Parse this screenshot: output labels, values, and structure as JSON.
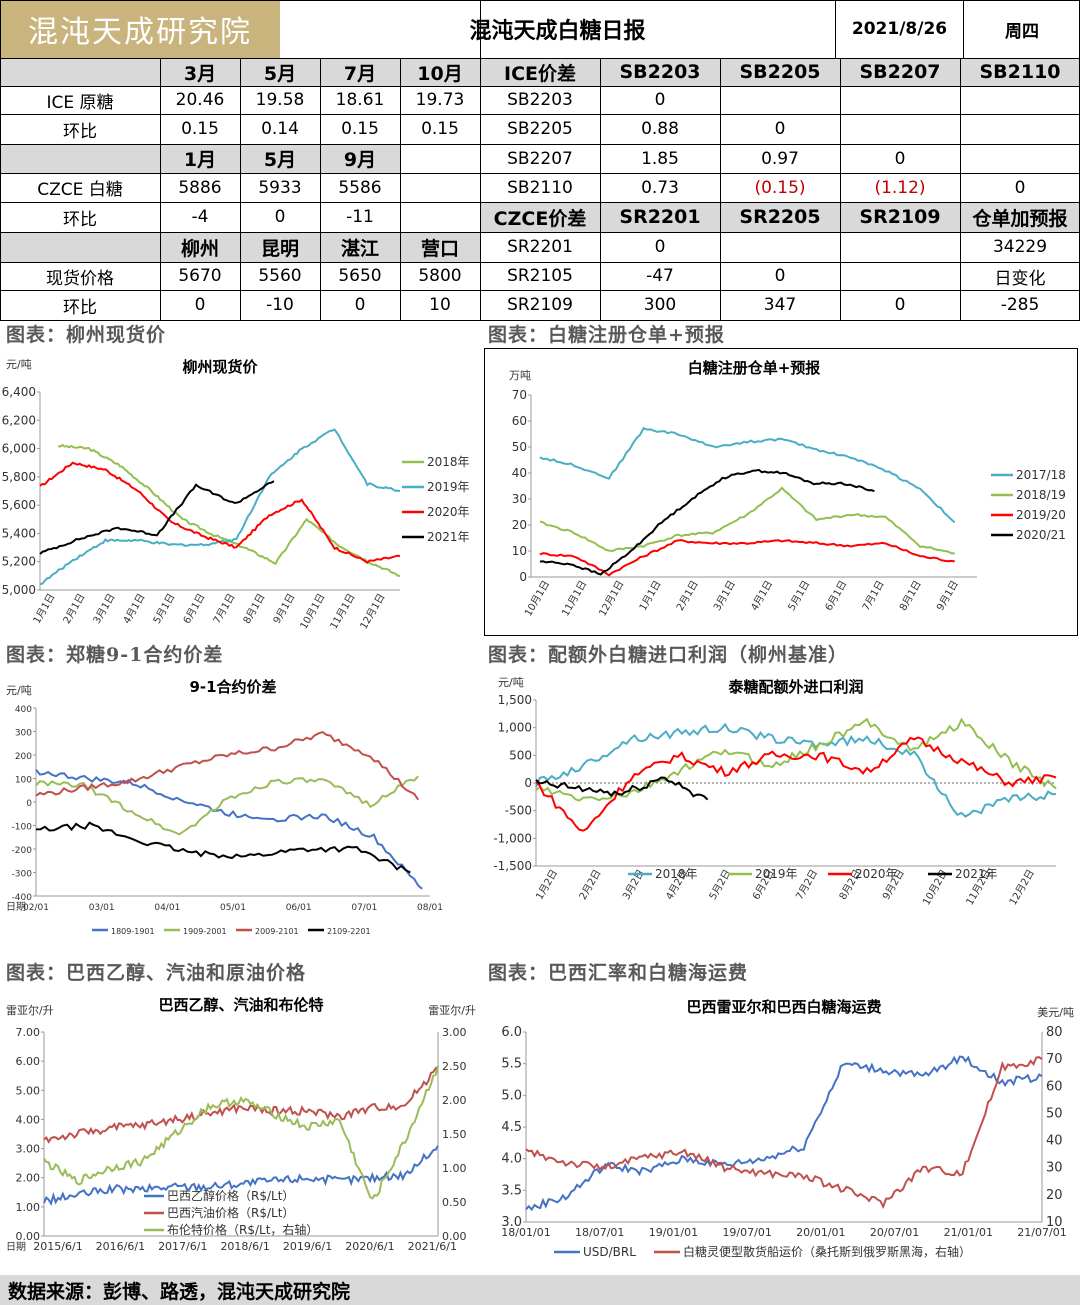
{
  "header": {
    "logo_text": "混沌天成研究院",
    "title": "混沌天成白糖日报",
    "date": "2021/8/26",
    "weekday": "周四"
  },
  "ice": {
    "months": [
      "3月",
      "5月",
      "7月",
      "10月"
    ],
    "name": "ICE 原糖",
    "values": [
      "20.46",
      "19.58",
      "18.61",
      "19.73"
    ],
    "chg_label": "环比",
    "chg": [
      "0.15",
      "0.14",
      "0.15",
      "0.15"
    ]
  },
  "czce": {
    "months": [
      "1月",
      "5月",
      "9月"
    ],
    "name": "CZCE 白糖",
    "values": [
      "5886",
      "5933",
      "5586"
    ],
    "chg_label": "环比",
    "chg": [
      "-4",
      "0",
      "-11"
    ]
  },
  "spot": {
    "places": [
      "柳州",
      "昆明",
      "湛江",
      "营口"
    ],
    "name": "现货价格",
    "values": [
      "5670",
      "5560",
      "5650",
      "5800"
    ],
    "chg_label": "环比",
    "chg": [
      "0",
      "-10",
      "0",
      "10"
    ]
  },
  "ice_spread": {
    "header": "ICE价差",
    "cols": [
      "SB2203",
      "SB2205",
      "SB2207",
      "SB2110"
    ],
    "rows": [
      {
        "name": "SB2203",
        "vals": [
          "0",
          "",
          "",
          ""
        ]
      },
      {
        "name": "SB2205",
        "vals": [
          "0.88",
          "0",
          "",
          ""
        ]
      },
      {
        "name": "SB2207",
        "vals": [
          "1.85",
          "0.97",
          "0",
          ""
        ]
      },
      {
        "name": "SB2110",
        "vals": [
          "0.73",
          "(0.15)",
          "(1.12)",
          "0"
        ]
      }
    ]
  },
  "czce_spread": {
    "header": "CZCE价差",
    "cols": [
      "SR2201",
      "SR2205",
      "SR2109"
    ],
    "extra_header": "仓单加预报",
    "rows": [
      {
        "name": "SR2201",
        "vals": [
          "0",
          "",
          ""
        ],
        "extra": "34229"
      },
      {
        "name": "SR2105",
        "vals": [
          "-47",
          "0",
          ""
        ],
        "extra": "日变化"
      },
      {
        "name": "SR2109",
        "vals": [
          "300",
          "347",
          "0"
        ],
        "extra": "-285"
      }
    ]
  },
  "sections": [
    "图表：柳州现货价",
    "图表：白糖注册仓单+预报",
    "图表：郑糖9-1合约价差",
    "图表：配额外白糖进口利润（柳州基准）",
    "图表：巴西乙醇、汽油和原油价格",
    "图表：巴西汇率和白糖海运费"
  ],
  "footer": "数据来源：彭博、路透，混沌天成研究院",
  "colors": {
    "c2018": "#92c050",
    "c2019": "#4bacc6",
    "c2020": "#ff0000",
    "c2021": "#000000",
    "blue": "#4472c4",
    "red": "#c0504d",
    "green": "#9bbb59",
    "header_gray": "#d9d9d9"
  },
  "chart_data": [
    {
      "type": "line",
      "title": "柳州现货价",
      "ylabel": "元/吨",
      "ylim": [
        5000,
        6400
      ],
      "yticks": [
        "5,000",
        "5,200",
        "5,400",
        "5,600",
        "5,800",
        "6,000",
        "6,200",
        "6,400"
      ],
      "xticks": [
        "1月1日",
        "2月1日",
        "3月1日",
        "4月1日",
        "5月1日",
        "6月1日",
        "7月1日",
        "8月1日",
        "9月1日",
        "10月1日",
        "11月1日",
        "12月1日"
      ],
      "series": [
        {
          "name": "2018年",
          "values": [
            6020,
            6000,
            5880,
            5700,
            5500,
            5390,
            5300,
            5190,
            5500,
            5320,
            5200,
            5100
          ]
        },
        {
          "name": "2019年",
          "values": [
            5040,
            5210,
            5350,
            5350,
            5320,
            5320,
            5360,
            5800,
            6000,
            6140,
            5750,
            5700
          ]
        },
        {
          "name": "2020年",
          "values": [
            5730,
            5900,
            5850,
            5700,
            5480,
            5380,
            5300,
            5530,
            5640,
            5300,
            5200,
            5240
          ]
        },
        {
          "name": "2021年",
          "values": [
            5260,
            5360,
            5440,
            5390,
            5740,
            5610,
            5770
          ]
        }
      ]
    },
    {
      "type": "line",
      "title": "白糖注册仓单+预报",
      "ylabel": "万吨",
      "ylim": [
        0,
        70
      ],
      "yticks": [
        "0",
        "10",
        "20",
        "30",
        "40",
        "50",
        "60",
        "70"
      ],
      "xticks": [
        "10月1日",
        "11月1日",
        "12月1日",
        "1月1日",
        "2月1日",
        "3月1日",
        "4月1日",
        "5月1日",
        "6月1日",
        "7月1日",
        "8月1日",
        "9月1日"
      ],
      "series": [
        {
          "name": "2017/18",
          "values": [
            46,
            43,
            38,
            57,
            55,
            50,
            52,
            53,
            49,
            46,
            41,
            34,
            21
          ]
        },
        {
          "name": "2018/19",
          "values": [
            21,
            17,
            10,
            12,
            16,
            17,
            24,
            34,
            22,
            24,
            23,
            12,
            9
          ]
        },
        {
          "name": "2019/20",
          "values": [
            9,
            8,
            1,
            8,
            14,
            13,
            13,
            14,
            13,
            12,
            13,
            8,
            6
          ]
        },
        {
          "name": "2020/21",
          "values": [
            6,
            5,
            1,
            10,
            21,
            30,
            38,
            41,
            40,
            36,
            36,
            33
          ]
        }
      ]
    },
    {
      "type": "line",
      "title": "9-1合约价差",
      "ylabel": "元/吨",
      "ylim": [
        -400,
        400
      ],
      "yticks": [
        "-400",
        "-300",
        "-200",
        "-100",
        "0",
        "100",
        "200",
        "300",
        "400"
      ],
      "xticks": [
        "02/01",
        "03/01",
        "04/01",
        "05/01",
        "06/01",
        "07/01",
        "08/01"
      ],
      "xlabel": "日期",
      "series": [
        {
          "name": "1809-1901",
          "values": [
            130,
            100,
            80,
            10,
            -50,
            -70,
            -60,
            -150,
            -370
          ]
        },
        {
          "name": "1909-2001",
          "values": [
            80,
            70,
            -40,
            -140,
            10,
            90,
            90,
            -10,
            110
          ]
        },
        {
          "name": "2009-2101",
          "values": [
            30,
            60,
            90,
            150,
            200,
            230,
            290,
            200,
            10
          ]
        },
        {
          "name": "2109-2201",
          "values": [
            -120,
            -100,
            -170,
            -220,
            -230,
            -200,
            -200,
            -300
          ]
        }
      ]
    },
    {
      "type": "line",
      "title": "泰糖配额外进口利润",
      "ylabel": "元/吨",
      "ylim": [
        -1500,
        1500
      ],
      "yticks": [
        "-1,500",
        "-1,000",
        "-500",
        "0",
        "500",
        "1,000",
        "1,500"
      ],
      "xticks": [
        "1月2日",
        "2月2日",
        "3月2日",
        "4月2日",
        "5月2日",
        "6月2日",
        "7月2日",
        "8月2日",
        "9月2日",
        "10月2日",
        "11月2日",
        "12月2日"
      ],
      "series": [
        {
          "name": "2018年",
          "values": [
            0,
            300,
            800,
            900,
            1000,
            800,
            700,
            800,
            500,
            -600,
            -300,
            -200
          ]
        },
        {
          "name": "2019年",
          "values": [
            -100,
            -300,
            -200,
            200,
            600,
            300,
            700,
            1100,
            600,
            1100,
            400,
            -100
          ]
        },
        {
          "name": "2020年",
          "values": [
            0,
            -900,
            100,
            500,
            200,
            500,
            500,
            200,
            800,
            400,
            0,
            100
          ]
        },
        {
          "name": "2021年",
          "values": [
            0,
            -100,
            -200,
            100,
            -300
          ]
        }
      ]
    },
    {
      "type": "line",
      "title": "巴西乙醇、汽油和布伦特",
      "ylabel": "雷亚尔/升",
      "y2label": "雷亚尔/升",
      "ylim": [
        0,
        7
      ],
      "y2lim": [
        0,
        3
      ],
      "yticks": [
        "0.00",
        "1.00",
        "2.00",
        "3.00",
        "4.00",
        "5.00",
        "6.00",
        "7.00"
      ],
      "y2ticks": [
        "0.00",
        "0.50",
        "1.00",
        "1.50",
        "2.00",
        "2.50",
        "3.00"
      ],
      "xticks": [
        "2015/6/1",
        "2016/6/1",
        "2017/6/1",
        "2018/6/1",
        "2019/6/1",
        "2020/6/1",
        "2021/6/1"
      ],
      "xlabel": "日期",
      "series": [
        {
          "name": "巴西乙醇价格（R$/Lt）",
          "values": [
            1.2,
            1.4,
            1.6,
            1.6,
            1.7,
            1.7,
            1.8,
            1.9,
            2.0,
            1.9,
            2.0,
            2.1,
            3.1
          ]
        },
        {
          "name": "巴西汽油价格（R$/Lt）",
          "values": [
            3.3,
            3.5,
            3.7,
            3.8,
            4.0,
            4.2,
            4.4,
            4.3,
            4.3,
            4.1,
            4.4,
            4.5,
            5.8
          ]
        },
        {
          "name": "布伦特价格（R$/Lt，右轴）",
          "values": [
            1.1,
            0.8,
            1.0,
            1.1,
            1.5,
            1.9,
            2.0,
            1.8,
            1.6,
            1.7,
            0.5,
            1.4,
            2.5
          ]
        }
      ]
    },
    {
      "type": "line",
      "title": "巴西雷亚尔和巴西白糖海运费",
      "ylim": [
        3,
        6
      ],
      "y2label": "美元/吨",
      "y2lim": [
        10,
        80
      ],
      "yticks": [
        "3.0",
        "3.5",
        "4.0",
        "4.5",
        "5.0",
        "5.5",
        "6.0"
      ],
      "y2ticks": [
        "10",
        "20",
        "30",
        "40",
        "50",
        "60",
        "70",
        "80"
      ],
      "xticks": [
        "18/01/01",
        "18/07/01",
        "19/01/01",
        "19/07/01",
        "20/01/01",
        "20/07/01",
        "21/01/01",
        "21/07/01"
      ],
      "series": [
        {
          "name": "USD/BRL",
          "values": [
            3.2,
            3.4,
            3.9,
            3.8,
            4.0,
            3.9,
            4.0,
            4.2,
            5.5,
            5.4,
            5.3,
            5.6,
            5.2,
            5.3
          ]
        },
        {
          "name": "白糖灵便型散货船运价（桑托斯到俄罗斯黑海，右轴）",
          "values": [
            36,
            32,
            30,
            34,
            36,
            30,
            28,
            27,
            22,
            17,
            30,
            28,
            67,
            70
          ]
        }
      ]
    }
  ]
}
